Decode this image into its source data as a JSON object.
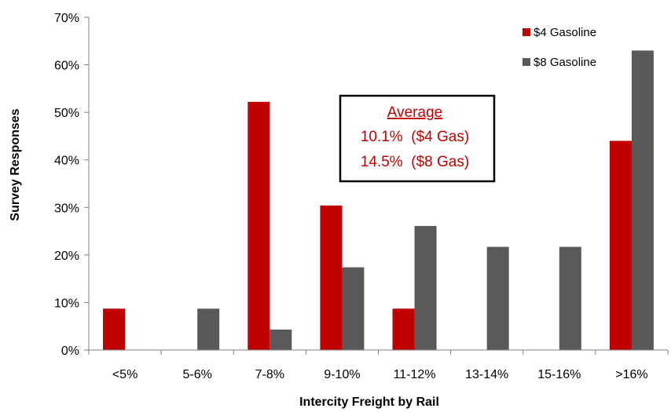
{
  "chart_data": {
    "type": "bar",
    "title": "",
    "xlabel": "Intercity Freight by Rail",
    "ylabel": "Survey Responses",
    "ylim": [
      0,
      70
    ],
    "ytick_step": 10,
    "ytick_suffix": "%",
    "grid": false,
    "legend_position": "top-right",
    "categories": [
      "<5%",
      "5-6%",
      "7-8%",
      "9-10%",
      "11-12%",
      "13-14%",
      "15-16%",
      ">16%"
    ],
    "series": [
      {
        "name": "$4 Gasoline",
        "color": "#c00000",
        "values": [
          8.7,
          0,
          52.2,
          30.4,
          8.7,
          0,
          0,
          44.0
        ]
      },
      {
        "name": "$8 Gasoline",
        "color": "#595959",
        "values": [
          0,
          8.7,
          4.3,
          17.4,
          26.1,
          21.7,
          21.7,
          63.0
        ]
      }
    ],
    "annotation": {
      "title": "Average",
      "lines": [
        "10.1%  ($4 Gas)",
        "14.5%  ($8 Gas)"
      ],
      "color": "#c00000"
    }
  }
}
